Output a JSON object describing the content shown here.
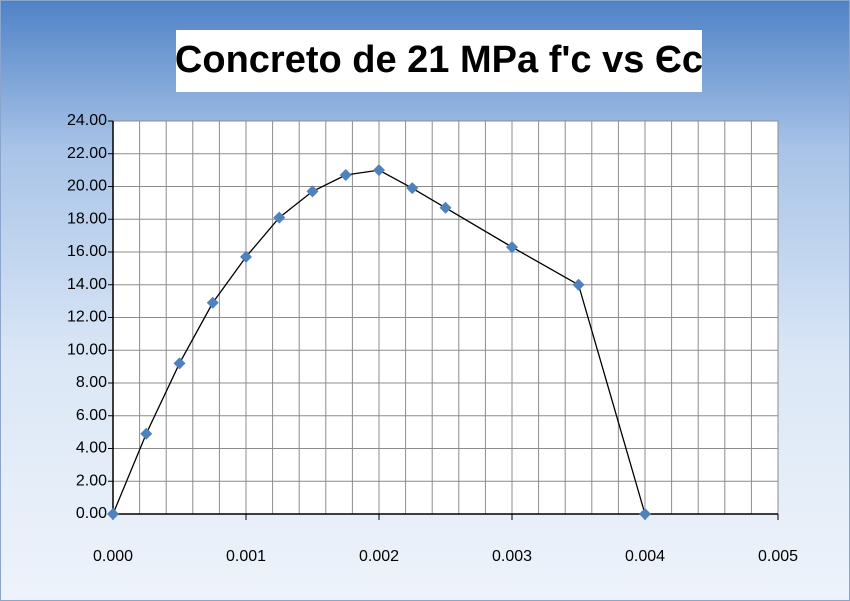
{
  "chart_data": {
    "type": "scatter",
    "title": "Concreto de 21 MPa  f'c vs Єc",
    "x": [
      0,
      0.00025,
      0.0005,
      0.00075,
      0.001,
      0.00125,
      0.0015,
      0.00175,
      0.002,
      0.00225,
      0.0025,
      0.003,
      0.0035,
      0.004
    ],
    "series": [
      {
        "color": "#4f81bd",
        "values": [
          0,
          4.9,
          9.2,
          12.9,
          15.7,
          18.1,
          19.7,
          20.7,
          21.0,
          19.9,
          18.7,
          16.3,
          14.0,
          0
        ]
      }
    ],
    "xlim": [
      0,
      0.005
    ],
    "xticks": [
      {
        "value": 0,
        "label": "0.000"
      },
      {
        "value": 0.001,
        "label": "0.001"
      },
      {
        "value": 0.002,
        "label": "0.002"
      },
      {
        "value": 0.003,
        "label": "0.003"
      },
      {
        "value": 0.004,
        "label": "0.004"
      },
      {
        "value": 0.005,
        "label": "0.005"
      }
    ],
    "xgrid": [
      0.0002,
      0.0004,
      0.0006,
      0.0008,
      0.001,
      0.0012,
      0.0014,
      0.0016,
      0.0018,
      0.002,
      0.0022,
      0.0024,
      0.0026,
      0.0028,
      0.003,
      0.0032,
      0.0034,
      0.0036,
      0.0038,
      0.004,
      0.0042,
      0.0044,
      0.0046,
      0.0048,
      0.005
    ],
    "ylim": [
      0,
      24
    ],
    "yticks": [
      {
        "value": 0,
        "label": "0.00"
      },
      {
        "value": 2,
        "label": "2.00"
      },
      {
        "value": 4,
        "label": "4.00"
      },
      {
        "value": 6,
        "label": "6.00"
      },
      {
        "value": 8,
        "label": "8.00"
      },
      {
        "value": 10,
        "label": "10.00"
      },
      {
        "value": 12,
        "label": "12.00"
      },
      {
        "value": 14,
        "label": "14.00"
      },
      {
        "value": 16,
        "label": "16.00"
      },
      {
        "value": 18,
        "label": "18.00"
      },
      {
        "value": 20,
        "label": "20.00"
      },
      {
        "value": 22,
        "label": "22.00"
      },
      {
        "value": 24,
        "label": "24.00"
      }
    ],
    "line_color": "#000000",
    "grid": true
  }
}
